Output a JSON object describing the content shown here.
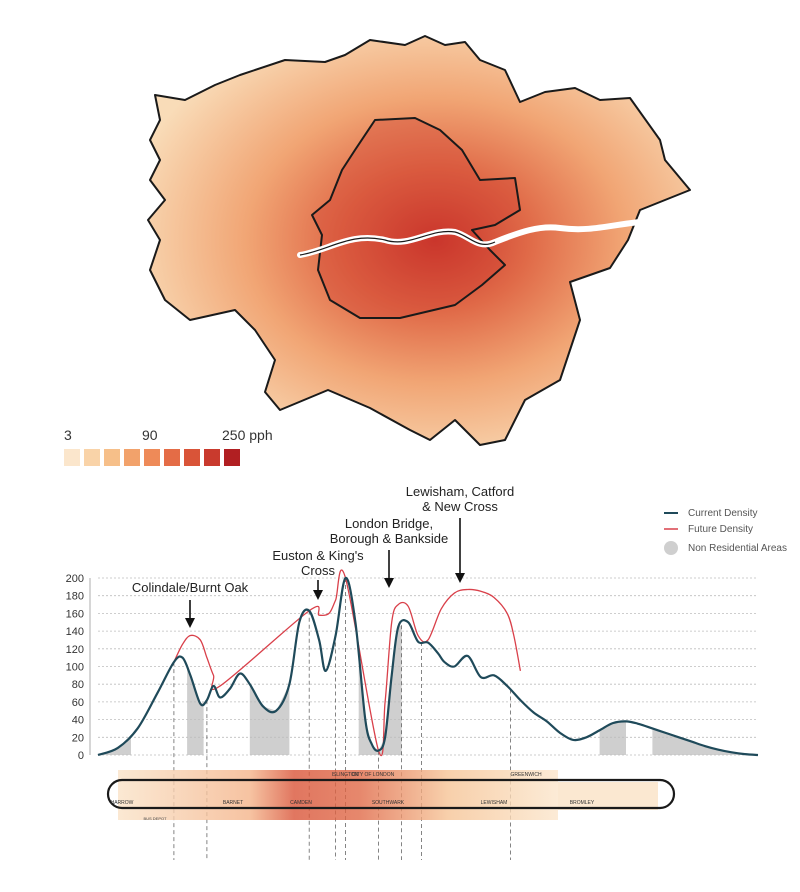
{
  "density_scale": {
    "labels": [
      "3",
      "90",
      "250 pph"
    ],
    "swatches": [
      "#fbe6cc",
      "#f9d3a8",
      "#f6bf89",
      "#f2a26b",
      "#ee8a58",
      "#e46c46",
      "#d95438",
      "#c93a2d",
      "#b11f22"
    ]
  },
  "colors": {
    "current": "#1f4a5a",
    "future": "#d9404a",
    "non_residential": "#cfcfcf",
    "boundary": "#1a1a1a"
  },
  "chart_data": {
    "type": "line",
    "ylim": [
      0,
      200
    ],
    "yticks": [
      0,
      20,
      40,
      60,
      80,
      100,
      120,
      140,
      160,
      180,
      200
    ],
    "xlim": [
      0,
      100
    ],
    "grid": true,
    "legend_position": "top-right",
    "legend": [
      {
        "label": "Current Density",
        "kind": "line",
        "color": "#1f4a5a"
      },
      {
        "label": "Future Density",
        "kind": "line",
        "color": "#d9404a"
      },
      {
        "label": "Non Residential Areas",
        "kind": "dot",
        "color": "#cfcfcf"
      }
    ],
    "series": [
      {
        "name": "Current Density",
        "x": [
          0,
          3,
          6,
          9,
          11.5,
          12.8,
          14,
          15.5,
          16.5,
          17.5,
          18.5,
          20,
          21.5,
          23,
          25,
          27,
          29,
          30.5,
          32,
          33.5,
          34.5,
          36,
          37.5,
          39,
          40.5,
          41.5,
          42.5,
          43.5,
          44.5,
          45.5,
          47,
          48.5,
          50,
          51.5,
          52.5,
          54,
          56,
          58,
          60,
          62,
          64,
          66,
          68,
          70,
          72,
          74,
          76,
          78,
          80,
          82,
          84,
          86,
          88,
          90,
          92,
          94,
          96,
          98,
          100
        ],
        "y": [
          0,
          8,
          30,
          70,
          105,
          110,
          90,
          58,
          62,
          78,
          65,
          75,
          92,
          80,
          55,
          50,
          80,
          150,
          163,
          130,
          95,
          135,
          200,
          150,
          40,
          12,
          5,
          20,
          90,
          145,
          150,
          128,
          127,
          115,
          105,
          100,
          112,
          88,
          90,
          78,
          62,
          48,
          38,
          25,
          17,
          20,
          28,
          36,
          38,
          35,
          30,
          25,
          20,
          15,
          10,
          6,
          3,
          1,
          0
        ]
      },
      {
        "name": "Future Density",
        "x": [
          11.5,
          12.8,
          14,
          15.5,
          16.5,
          17.5,
          18.5,
          32,
          33.5,
          35,
          36,
          37.5,
          42.5,
          43.5,
          44.5,
          45.5,
          47,
          48.5,
          50,
          52,
          54,
          56,
          58,
          60,
          62,
          63,
          64
        ],
        "y": [
          105,
          125,
          135,
          130,
          110,
          90,
          78,
          163,
          158,
          160,
          175,
          200,
          5,
          60,
          150,
          170,
          168,
          135,
          130,
          165,
          183,
          187,
          185,
          178,
          160,
          135,
          95
        ]
      }
    ],
    "non_residential_bands": [
      [
        0,
        5
      ],
      [
        13.5,
        16
      ],
      [
        23,
        29
      ],
      [
        39.5,
        46
      ],
      [
        76,
        80
      ],
      [
        84,
        100
      ]
    ],
    "annotations": [
      {
        "text": "Colindale/Burnt Oak",
        "x": 14
      },
      {
        "text": "Euston & King's Cross",
        "x": 33
      },
      {
        "text": "London Bridge, Borough & Bankside",
        "x": 44
      },
      {
        "text": "Lewisham, Catford & New Cross",
        "x": 55
      }
    ],
    "strip_labels": {
      "top": [
        "ISLINGTON",
        "CITY OF LONDON",
        "GREENWICH"
      ],
      "bottom": [
        "HARROW",
        "BARNET",
        "CAMDEN",
        "SOUTHWARK",
        "LEWISHAM",
        "BROMLEY"
      ],
      "note": "BUS DEPOT"
    }
  }
}
